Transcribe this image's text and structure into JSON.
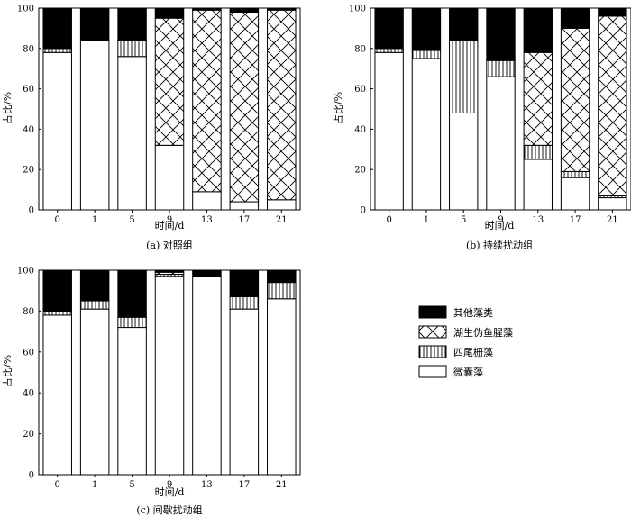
{
  "chart_data": [
    {
      "type": "bar",
      "stacked": true,
      "caption": "(a)  对照组",
      "xlabel": "时间/d",
      "ylabel": "占比/%",
      "ylim": [
        0,
        100
      ],
      "yticks": [
        0,
        20,
        40,
        60,
        80,
        100
      ],
      "categories": [
        "0",
        "1",
        "5",
        "9",
        "13",
        "17",
        "21"
      ],
      "series": [
        {
          "name": "微囊藻",
          "pattern": "white",
          "values": [
            78,
            84,
            76,
            32,
            9,
            4,
            5
          ]
        },
        {
          "name": "四尾栅藻",
          "pattern": "vertical-lines",
          "values": [
            2,
            0,
            8,
            0,
            0,
            0,
            0
          ]
        },
        {
          "name": "湖生伪鱼腥藻",
          "pattern": "crosshatch",
          "values": [
            0,
            0,
            0,
            63,
            90,
            94,
            94
          ]
        },
        {
          "name": "其他藻类",
          "pattern": "black",
          "values": [
            20,
            16,
            16,
            5,
            1,
            2,
            1
          ]
        }
      ]
    },
    {
      "type": "bar",
      "stacked": true,
      "caption": "(b)  持续扰动组",
      "xlabel": "时间/d",
      "ylabel": "占比/%",
      "ylim": [
        0,
        100
      ],
      "yticks": [
        0,
        20,
        40,
        60,
        80,
        100
      ],
      "categories": [
        "0",
        "1",
        "5",
        "9",
        "13",
        "17",
        "21"
      ],
      "series": [
        {
          "name": "微囊藻",
          "pattern": "white",
          "values": [
            78,
            75,
            48,
            66,
            25,
            16,
            6
          ]
        },
        {
          "name": "四尾栅藻",
          "pattern": "vertical-lines",
          "values": [
            2,
            4,
            36,
            8,
            7,
            3,
            1
          ]
        },
        {
          "name": "湖生伪鱼腥藻",
          "pattern": "crosshatch",
          "values": [
            0,
            0,
            0,
            0,
            46,
            71,
            89
          ]
        },
        {
          "name": "其他藻类",
          "pattern": "black",
          "values": [
            20,
            21,
            16,
            26,
            22,
            10,
            4
          ]
        }
      ]
    },
    {
      "type": "bar",
      "stacked": true,
      "caption": "(c)  间歇扰动组",
      "xlabel": "时间/d",
      "ylabel": "占比/%",
      "ylim": [
        0,
        100
      ],
      "yticks": [
        0,
        20,
        40,
        60,
        80,
        100
      ],
      "categories": [
        "0",
        "1",
        "5",
        "9",
        "13",
        "17",
        "21"
      ],
      "series": [
        {
          "name": "微囊藻",
          "pattern": "white",
          "values": [
            78,
            81,
            72,
            97,
            97,
            81,
            86
          ]
        },
        {
          "name": "四尾栅藻",
          "pattern": "vertical-lines",
          "values": [
            2,
            4,
            5,
            1,
            0,
            6,
            8
          ]
        },
        {
          "name": "湖生伪鱼腥藻",
          "pattern": "crosshatch",
          "values": [
            0,
            0,
            0,
            1,
            0,
            0,
            0
          ]
        },
        {
          "name": "其他藻类",
          "pattern": "black",
          "values": [
            20,
            15,
            23,
            1,
            3,
            13,
            6
          ]
        }
      ]
    }
  ],
  "legend": {
    "placement": "bottom-right",
    "items": [
      {
        "label": "其他藻类",
        "pattern": "black"
      },
      {
        "label": "湖生伪鱼腥藻",
        "pattern": "crosshatch"
      },
      {
        "label": "四尾栅藻",
        "pattern": "vertical-lines"
      },
      {
        "label": "微囊藻",
        "pattern": "white"
      }
    ]
  }
}
